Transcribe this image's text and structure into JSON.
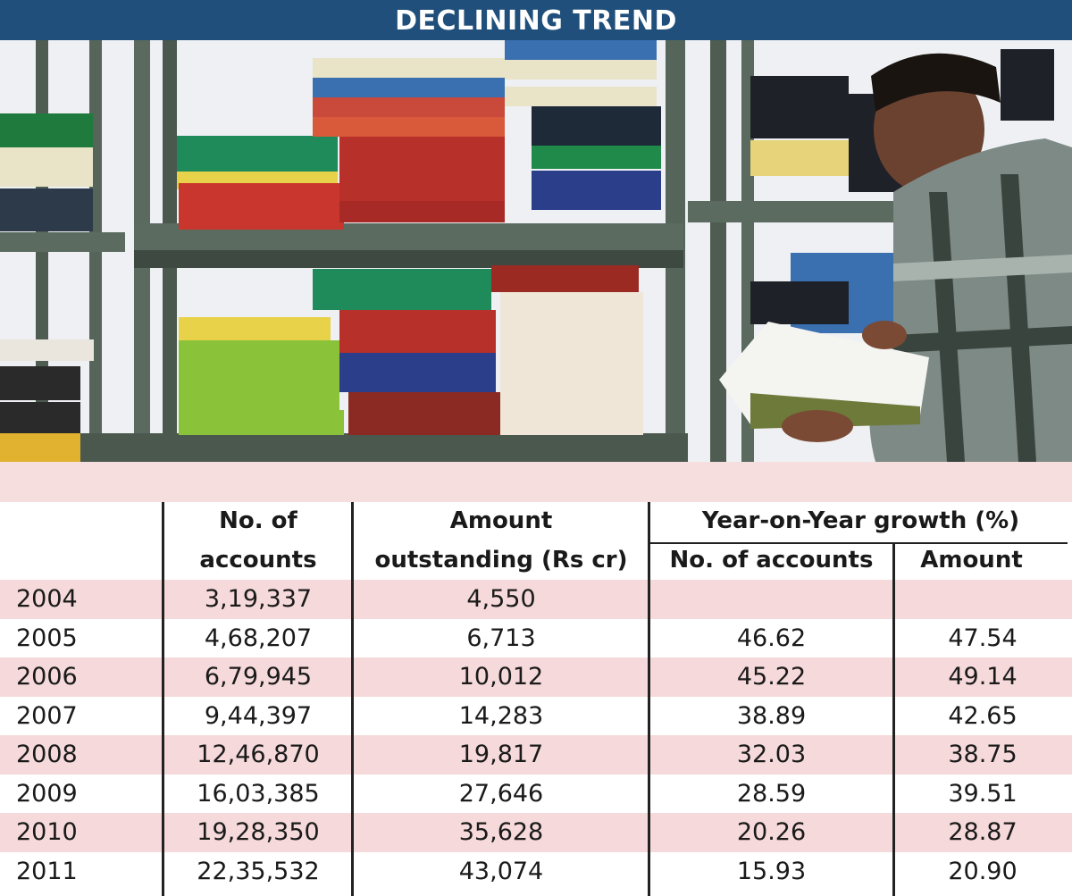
{
  "title": "DECLINING TREND",
  "colors": {
    "title_bg": "#1f4f7a",
    "row_pink": "#f6d9da",
    "band_pink": "#f7dede"
  },
  "table": {
    "headers": {
      "accounts": [
        "No. of",
        "accounts"
      ],
      "amount": [
        "Amount",
        "outstanding (Rs cr)"
      ],
      "growth_group": "Year-on-Year growth (%)",
      "growth_accounts": "No. of accounts",
      "growth_amount": "Amount"
    },
    "rows": [
      {
        "year": "2004",
        "accounts": "3,19,337",
        "amount": "4,550",
        "g_accounts": "",
        "g_amount": ""
      },
      {
        "year": "2005",
        "accounts": "4,68,207",
        "amount": "6,713",
        "g_accounts": "46.62",
        "g_amount": "47.54"
      },
      {
        "year": "2006",
        "accounts": "6,79,945",
        "amount": "10,012",
        "g_accounts": "45.22",
        "g_amount": "49.14"
      },
      {
        "year": "2007",
        "accounts": "9,44,397",
        "amount": "14,283",
        "g_accounts": "38.89",
        "g_amount": "42.65"
      },
      {
        "year": "2008",
        "accounts": "12,46,870",
        "amount": "19,817",
        "g_accounts": "32.03",
        "g_amount": "38.75"
      },
      {
        "year": "2009",
        "accounts": "16,03,385",
        "amount": "27,646",
        "g_accounts": "28.59",
        "g_amount": "39.51"
      },
      {
        "year": "2010",
        "accounts": "19,28,350",
        "amount": "35,628",
        "g_accounts": "20.26",
        "g_amount": "28.87"
      },
      {
        "year": "2011",
        "accounts": "22,35,532",
        "amount": "43,074",
        "g_accounts": "15.93",
        "g_amount": "20.90"
      }
    ]
  },
  "chart_data": {
    "type": "table",
    "title": "DECLINING TREND",
    "columns": [
      "",
      "No. of accounts",
      "Amount outstanding (Rs cr)",
      "Year-on-Year growth (%) No. of accounts",
      "Year-on-Year growth (%) Amount"
    ],
    "years": [
      2004,
      2005,
      2006,
      2007,
      2008,
      2009,
      2010,
      2011
    ],
    "series": [
      {
        "name": "No. of accounts",
        "values": [
          319337,
          468207,
          679945,
          944397,
          1246870,
          1603385,
          1928350,
          2235532
        ]
      },
      {
        "name": "Amount outstanding (Rs cr)",
        "values": [
          4550,
          6713,
          10012,
          14283,
          19817,
          27646,
          35628,
          43074
        ]
      },
      {
        "name": "No. of accounts",
        "values": [
          null,
          46.62,
          45.22,
          38.89,
          32.03,
          28.59,
          20.26,
          15.93
        ]
      },
      {
        "name": "Amount",
        "values": [
          null,
          47.54,
          49.14,
          42.65,
          38.75,
          39.51,
          28.87,
          20.9
        ]
      }
    ]
  }
}
